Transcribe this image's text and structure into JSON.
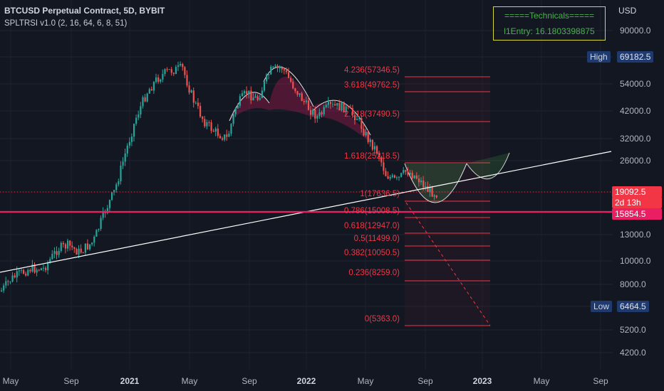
{
  "header": {
    "symbol_line": "BTCUSD Perpetual Contract, 5D, BYBIT",
    "indicator_line": "SPLTRSI v1.0 (2, 16, 64, 6, 8, 51)"
  },
  "technicals": {
    "title": "=====Technicals=====",
    "entry": "l1Entry: 16.1803398875"
  },
  "axis": {
    "currency": "USD",
    "y_ticks": [
      "90000.0",
      "54000.0",
      "42000.0",
      "32000.0",
      "26000.0",
      "13000.0",
      "10000.0",
      "8000.0",
      "5200.0",
      "4200.0"
    ],
    "x_ticks": [
      "May",
      "Sep",
      "2021",
      "May",
      "Sep",
      "2022",
      "May",
      "Sep",
      "2023",
      "May",
      "Sep"
    ]
  },
  "markers": {
    "high_label": "High",
    "high_value": "69182.5",
    "low_label": "Low",
    "low_value": "6464.5",
    "last_price": "19092.5",
    "countdown": "2d 13h",
    "level_price": "15854.5"
  },
  "fib_levels": [
    {
      "label": "4.236(57346.5)"
    },
    {
      "label": "3.618(49762.5)"
    },
    {
      "label": "2.618(37490.5)"
    },
    {
      "label": "1.618(25218.5)"
    },
    {
      "label": "1(17636.5)"
    },
    {
      "label": "0.786(15008.5)"
    },
    {
      "label": "0.618(12947.0)"
    },
    {
      "label": "0.5(11499.0)"
    },
    {
      "label": "0.382(10050.5)"
    },
    {
      "label": "0.236(8259.0)"
    },
    {
      "label": "0(5363.0)"
    }
  ],
  "colors": {
    "background": "#131722",
    "up": "#26a69a",
    "down": "#ef5350",
    "fib": "#f23645",
    "level_line": "#e91e63",
    "trendline": "#ffffff"
  }
}
